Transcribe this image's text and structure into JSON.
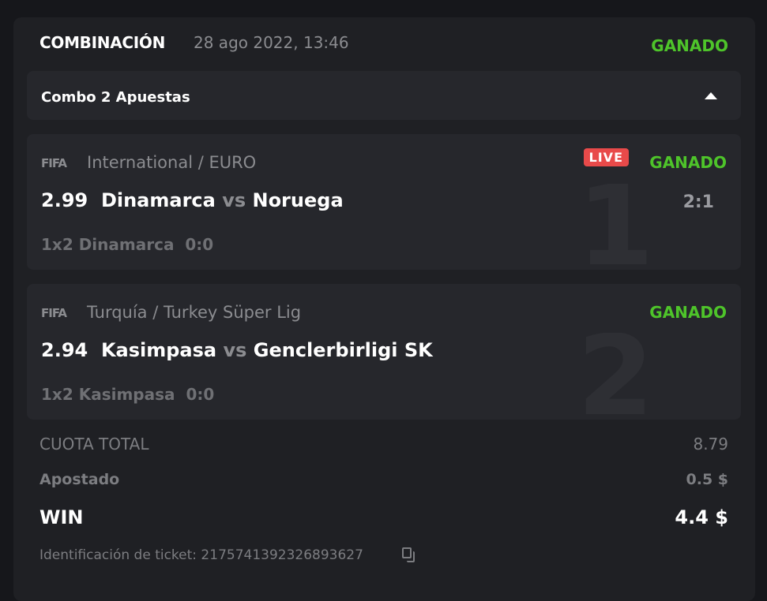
{
  "header": {
    "title": "COMBINACIÓN",
    "date": "28 ago 2022, 13:46",
    "status": "GANADO"
  },
  "combo": {
    "label": "Combo 2 Apuestas",
    "toggle_icon": "caret-up-icon"
  },
  "matches": [
    {
      "index": "1",
      "provider": "FIFA",
      "league": "International / EURO",
      "odds": "2.99",
      "home": "Dinamarca",
      "vs": "vs",
      "away": "Noruega",
      "market": "1x2 Dinamarca",
      "bet_score": "0:0",
      "live": "LIVE",
      "status": "GANADO",
      "score": "2:1"
    },
    {
      "index": "2",
      "provider": "FIFA",
      "league": "Turquía / Turkey Süper Lig",
      "odds": "2.94",
      "home": "Kasimpasa",
      "vs": "vs",
      "away": "Genclerbirligi SK",
      "market": "1x2 Kasimpasa",
      "bet_score": "0:0",
      "status": "GANADO"
    }
  ],
  "summary": {
    "total_odds_label": "CUOTA TOTAL",
    "total_odds": "8.79",
    "staked_label": "Apostado",
    "staked": "0.5 $",
    "win_label": "WIN",
    "win": "4.4 $",
    "ticket_label": "Identificación de ticket: 2175741392326893627"
  },
  "colors": {
    "win": "#4ec42a",
    "live": "#e84a4a"
  }
}
